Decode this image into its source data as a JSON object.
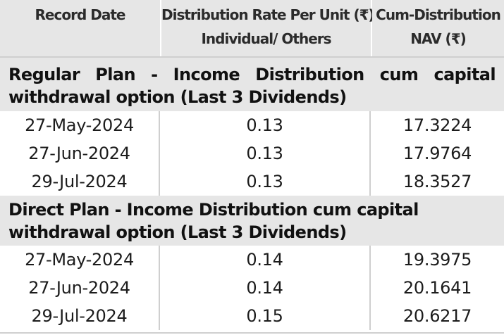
{
  "table": {
    "headers": [
      {
        "line1": "Record Date",
        "line2": ""
      },
      {
        "line1": "Distribution Rate Per Unit (₹)",
        "line2": "Individual/ Others"
      },
      {
        "line1": "Cum-Distribution",
        "line2": "NAV (₹)"
      }
    ],
    "sections": [
      {
        "heading": "Regular Plan - Income Distribution cum capital withdrawal option (Last 3 Dividends)",
        "rows": [
          {
            "record_date": "27-May-2024",
            "rate": "0.13",
            "nav": "17.3224"
          },
          {
            "record_date": "27-Jun-2024",
            "rate": "0.13",
            "nav": "17.9764"
          },
          {
            "record_date": "29-Jul-2024",
            "rate": "0.13",
            "nav": "18.3527"
          }
        ]
      },
      {
        "heading": "Direct Plan - Income Distribution cum capital withdrawal option (Last 3 Dividends)",
        "rows": [
          {
            "record_date": "27-May-2024",
            "rate": "0.14",
            "nav": "19.3975"
          },
          {
            "record_date": "27-Jun-2024",
            "rate": "0.14",
            "nav": "20.1641"
          },
          {
            "record_date": "29-Jul-2024",
            "rate": "0.15",
            "nav": "20.6217"
          }
        ]
      }
    ]
  },
  "colors": {
    "header_background": "#e6e6e6",
    "rule": "#cfcfcf",
    "text": "#1c1c1c"
  }
}
